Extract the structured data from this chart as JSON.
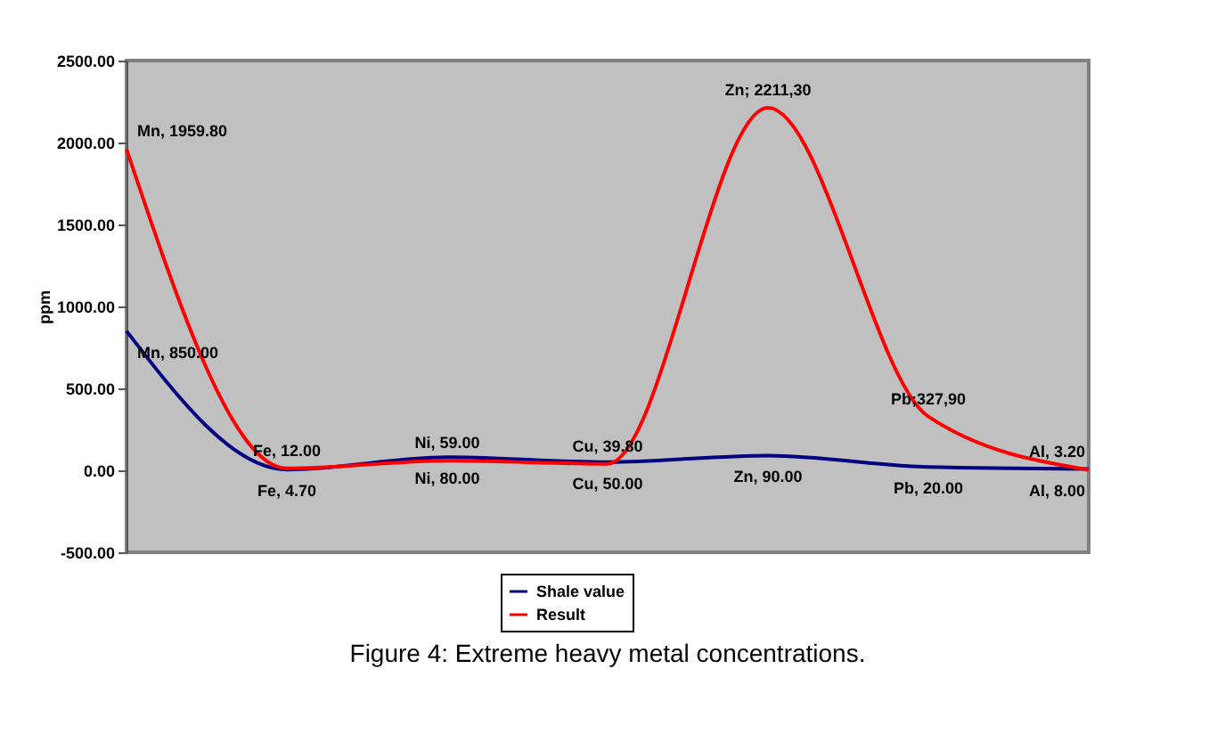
{
  "chart_data": {
    "type": "line",
    "categories": [
      null,
      null,
      null,
      null,
      null,
      null,
      null
    ],
    "series": [
      {
        "name": "Shale value",
        "color": "#000080",
        "values": [
          850.0,
          4.7,
          80.0,
          50.0,
          90.0,
          20.0,
          8.0
        ],
        "value_labels": [
          "Mn, 850.00",
          "Fe, 4.70",
          "Ni, 80.00",
          "Cu, 50.00",
          "Zn, 90.00",
          "Pb, 20.00",
          "Al, 8.00"
        ]
      },
      {
        "name": "Result",
        "color": "#ff0000",
        "values": [
          1959.8,
          12.0,
          59.0,
          39.8,
          2211.3,
          327.9,
          3.2
        ],
        "value_labels": [
          "Mn, 1959.80",
          "Fe, 12.00",
          "Ni, 59.00",
          "Cu, 39.80",
          "Zn; 2211,30",
          "Pb;327,90",
          "Al, 3.20"
        ]
      }
    ],
    "ylabel": "ppm",
    "ylim": [
      -500,
      2500
    ],
    "yticks": [
      {
        "value": -500,
        "label": "-500.00"
      },
      {
        "value": 0,
        "label": "0.00"
      },
      {
        "value": 500,
        "label": "500.00"
      },
      {
        "value": 1000,
        "label": "1000.00"
      },
      {
        "value": 1500,
        "label": "1500.00"
      },
      {
        "value": 2000,
        "label": "2000.00"
      },
      {
        "value": 2500,
        "label": "2500.00"
      }
    ],
    "tick_labels": "y",
    "grid": false,
    "legend": "bottom",
    "marker": "none",
    "line_style": "solid",
    "annotations": [
      "Figure 4: Extreme heavy metal concentrations."
    ]
  }
}
